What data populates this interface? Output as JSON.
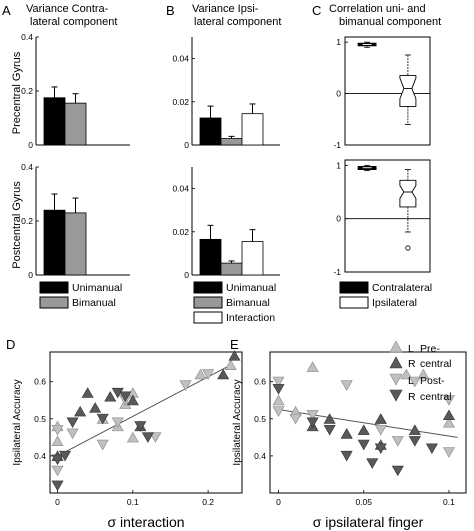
{
  "panels": {
    "A": {
      "letter": "A",
      "title": [
        "Variance Contra-",
        "lateral component"
      ]
    },
    "B": {
      "letter": "B",
      "title": [
        "Variance Ipsi-",
        "lateral component"
      ]
    },
    "C": {
      "letter": "C",
      "title": [
        "Correlation uni- and",
        "bimanual component"
      ]
    },
    "D": {
      "letter": "D"
    },
    "E": {
      "letter": "E"
    }
  },
  "row_labels": [
    "Precentral Gyrus",
    "Postcentral Gyrus"
  ],
  "legend_ab": [
    "Unimanual",
    "Bimanual",
    "Interaction"
  ],
  "legend_c": [
    "Contralateral",
    "Ipsilateral"
  ],
  "legend_de": [
    {
      "pre": "L",
      "name": "Pre-"
    },
    {
      "pre": "R",
      "name": "central"
    },
    {
      "pre": "L",
      "name": "Post-"
    },
    {
      "pre": "R",
      "name": "central"
    }
  ],
  "colors": {
    "unimanual": "#000000",
    "bimanual": "#999999",
    "interaction": "#ffffff",
    "light_tri": "#c0c0c0",
    "dark_tri": "#595959"
  },
  "chart_data": [
    {
      "id": "A-pre",
      "type": "bar",
      "categories": [
        "Unimanual",
        "Bimanual"
      ],
      "values": [
        0.175,
        0.155
      ],
      "errors": [
        0.04,
        0.035
      ],
      "ylim": [
        0,
        0.4
      ],
      "yticks": [
        "0",
        "0.2",
        "0.4"
      ],
      "ylabel": "Precentral Gyrus"
    },
    {
      "id": "A-post",
      "type": "bar",
      "categories": [
        "Unimanual",
        "Bimanual"
      ],
      "values": [
        0.24,
        0.23
      ],
      "errors": [
        0.06,
        0.055
      ],
      "ylim": [
        0,
        0.4
      ],
      "yticks": [
        "0",
        "0.2",
        "0.4"
      ],
      "ylabel": "Postcentral Gyrus"
    },
    {
      "id": "B-pre",
      "type": "bar",
      "categories": [
        "Unimanual",
        "Bimanual",
        "Interaction"
      ],
      "values": [
        0.0125,
        0.003,
        0.0145
      ],
      "errors": [
        0.0055,
        0.001,
        0.0045
      ],
      "ylim": [
        0,
        0.05
      ],
      "yticks": [
        "0",
        "0.02",
        "0.04"
      ]
    },
    {
      "id": "B-post",
      "type": "bar",
      "categories": [
        "Unimanual",
        "Bimanual",
        "Interaction"
      ],
      "values": [
        0.0165,
        0.0055,
        0.0155
      ],
      "errors": [
        0.0065,
        0.001,
        0.0055
      ],
      "ylim": [
        0,
        0.05
      ],
      "yticks": [
        "0",
        "0.02",
        "0.04"
      ]
    },
    {
      "id": "C-pre",
      "type": "box",
      "categories": [
        "Contralateral",
        "Ipsilateral"
      ],
      "boxes": [
        {
          "whisker_low": 0.9,
          "q1": 0.93,
          "median": 0.955,
          "q3": 0.98,
          "whisker_high": 1.0,
          "notch": 0.01,
          "outliers": []
        },
        {
          "whisker_low": -0.6,
          "q1": -0.25,
          "median": 0.1,
          "q3": 0.35,
          "whisker_high": 0.75,
          "notch": 0.2,
          "outliers": []
        }
      ],
      "ylim": [
        -1,
        1.1
      ],
      "yticks": [
        "-1",
        "0",
        "1"
      ]
    },
    {
      "id": "C-post",
      "type": "box",
      "categories": [
        "Contralateral",
        "Ipsilateral"
      ],
      "boxes": [
        {
          "whisker_low": 0.9,
          "q1": 0.92,
          "median": 0.955,
          "q3": 0.98,
          "whisker_high": 1.0,
          "notch": 0.01,
          "outliers": []
        },
        {
          "whisker_low": -0.25,
          "q1": 0.22,
          "median": 0.5,
          "q3": 0.72,
          "whisker_high": 0.92,
          "notch": 0.12,
          "outliers": [
            -0.55
          ]
        }
      ],
      "ylim": [
        -1,
        1.1
      ],
      "yticks": [
        "-1",
        "0",
        "1"
      ]
    },
    {
      "id": "D",
      "type": "scatter",
      "xlabel": "σ interaction",
      "ylabel": "Ipsilateral Accuracy",
      "xlim": [
        -0.01,
        0.245
      ],
      "ylim": [
        0.3,
        0.68
      ],
      "xticks": [
        "0",
        "0.1",
        "0.2"
      ],
      "yticks": [
        "0.4",
        "0.5",
        "0.6"
      ],
      "fit": {
        "x": [
          0,
          0.23
        ],
        "y": [
          0.4,
          0.645
        ]
      },
      "series": [
        {
          "name": "L Pre-central",
          "marker": "up",
          "color": "#c0c0c0",
          "points": [
            [
              0,
              0.48
            ],
            [
              0,
              0.44
            ],
            [
              0.08,
              0.48
            ],
            [
              0.06,
              0.5
            ],
            [
              0.09,
              0.54
            ],
            [
              0.1,
              0.45
            ],
            [
              0.1,
              0.57
            ],
            [
              0.19,
              0.62
            ],
            [
              0.23,
              0.645
            ]
          ]
        },
        {
          "name": "R central",
          "marker": "up",
          "color": "#595959",
          "points": [
            [
              0,
              0.4
            ],
            [
              0.03,
              0.52
            ],
            [
              0.04,
              0.57
            ],
            [
              0.05,
              0.53
            ],
            [
              0.07,
              0.56
            ],
            [
              0.1,
              0.55
            ],
            [
              0.11,
              0.48
            ],
            [
              0.22,
              0.62
            ],
            [
              0.235,
              0.67
            ]
          ]
        },
        {
          "name": "L Post-central",
          "marker": "down",
          "color": "#c0c0c0",
          "points": [
            [
              0,
              0.47
            ],
            [
              0,
              0.36
            ],
            [
              0.02,
              0.46
            ],
            [
              0.06,
              0.43
            ],
            [
              0.08,
              0.49
            ],
            [
              0.09,
              0.55
            ],
            [
              0.13,
              0.45
            ],
            [
              0.17,
              0.59
            ],
            [
              0.2,
              0.62
            ]
          ]
        },
        {
          "name": "R central",
          "marker": "down",
          "color": "#595959",
          "points": [
            [
              0,
              0.39
            ],
            [
              0,
              0.32
            ],
            [
              0.01,
              0.4
            ],
            [
              0.02,
              0.49
            ],
            [
              0.06,
              0.5
            ],
            [
              0.08,
              0.57
            ],
            [
              0.09,
              0.56
            ],
            [
              0.11,
              0.48
            ],
            [
              0.12,
              0.45
            ]
          ]
        }
      ]
    },
    {
      "id": "E",
      "type": "scatter",
      "xlabel": "σ ipsilateral finger",
      "ylabel": "Ipsilateral Accuracy",
      "xlim": [
        -0.005,
        0.11
      ],
      "ylim": [
        0.3,
        0.68
      ],
      "xticks": [
        "0",
        "0.05",
        "0.1"
      ],
      "yticks": [
        "0.4",
        "0.5",
        "0.6"
      ],
      "fit": {
        "x": [
          0,
          0.105
        ],
        "y": [
          0.525,
          0.45
        ]
      },
      "series": [
        {
          "name": "L Pre-central",
          "marker": "up",
          "color": "#c0c0c0",
          "points": [
            [
              0,
              0.55
            ],
            [
              0.01,
              0.52
            ],
            [
              0.04,
              0.46
            ],
            [
              0.075,
              0.62
            ],
            [
              0.085,
              0.62
            ],
            [
              0.1,
              0.49
            ],
            [
              0.02,
              0.64
            ],
            [
              0.06,
              0.5
            ]
          ]
        },
        {
          "name": "R central",
          "marker": "up",
          "color": "#595959",
          "points": [
            [
              0.02,
              0.48
            ],
            [
              0.03,
              0.5
            ],
            [
              0.04,
              0.46
            ],
            [
              0.05,
              0.47
            ],
            [
              0.06,
              0.43
            ],
            [
              0.06,
              0.5
            ],
            [
              0.08,
              0.47
            ],
            [
              0.1,
              0.51
            ]
          ]
        },
        {
          "name": "L Post-central",
          "marker": "down",
          "color": "#c0c0c0",
          "points": [
            [
              0,
              0.6
            ],
            [
              0,
              0.52
            ],
            [
              0.01,
              0.5
            ],
            [
              0.02,
              0.51
            ],
            [
              0.04,
              0.59
            ],
            [
              0.06,
              0.47
            ],
            [
              0.07,
              0.44
            ],
            [
              0.08,
              0.6
            ],
            [
              0.1,
              0.41
            ],
            [
              0.1,
              0.55
            ]
          ]
        },
        {
          "name": "R central",
          "marker": "down",
          "color": "#595959",
          "points": [
            [
              0,
              0.58
            ],
            [
              0.02,
              0.49
            ],
            [
              0.03,
              0.47
            ],
            [
              0.04,
              0.4
            ],
            [
              0.05,
              0.43
            ],
            [
              0.055,
              0.38
            ],
            [
              0.06,
              0.42
            ],
            [
              0.07,
              0.36
            ],
            [
              0.08,
              0.44
            ],
            [
              0.09,
              0.42
            ]
          ]
        }
      ]
    }
  ]
}
